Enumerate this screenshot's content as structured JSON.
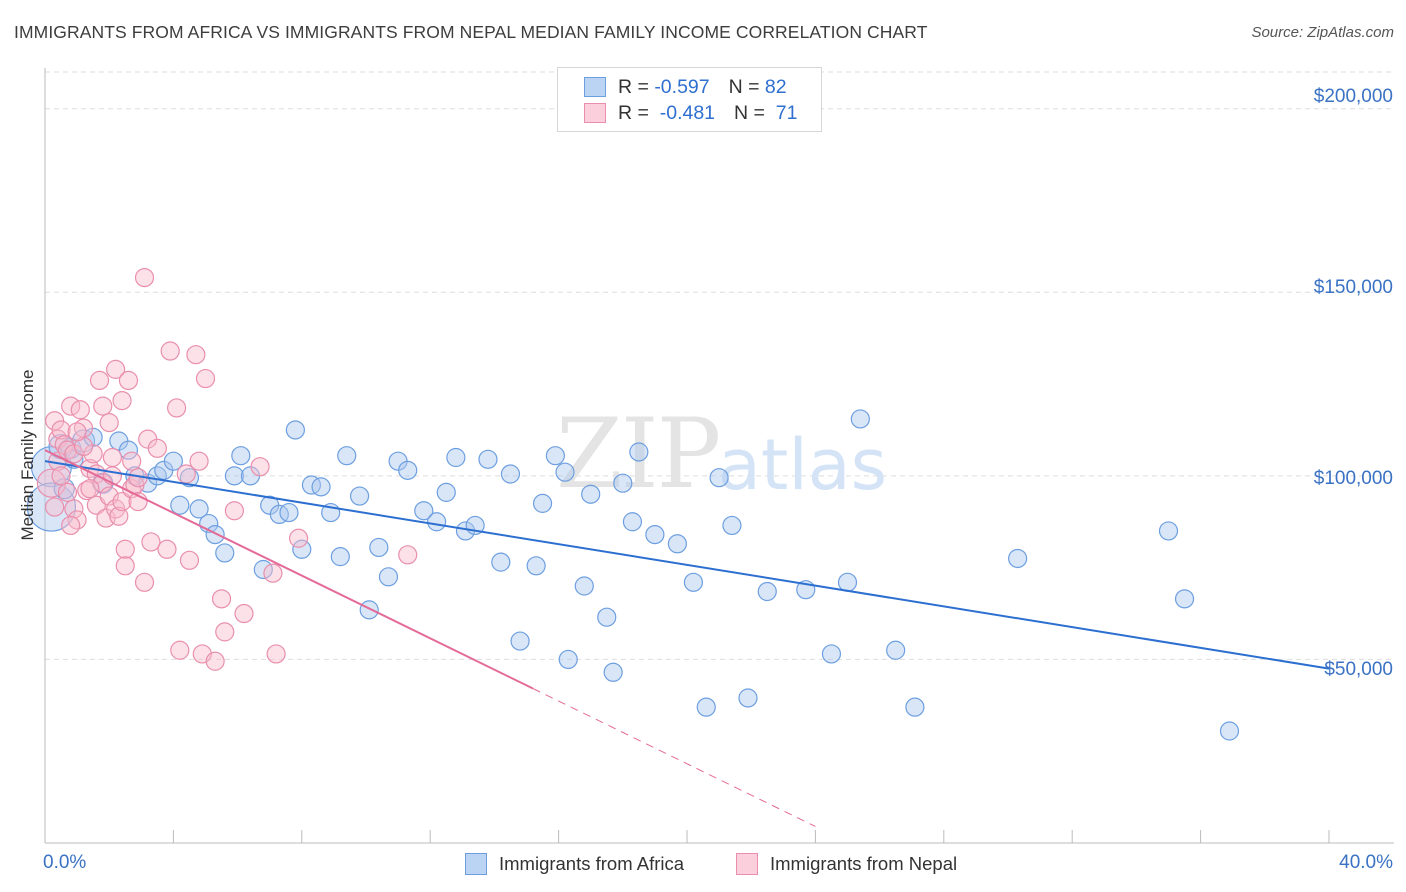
{
  "title": "IMMIGRANTS FROM AFRICA VS IMMIGRANTS FROM NEPAL MEDIAN FAMILY INCOME CORRELATION CHART",
  "source": "Source: ZipAtlas.com",
  "watermark": {
    "zip": "ZIP",
    "atlas": "atlas"
  },
  "legend": {
    "africa": {
      "r_label": "R =",
      "r_value": "-0.597",
      "n_label": "N =",
      "n_value": "82"
    },
    "nepal": {
      "r_label": "R =",
      "r_value": "-0.481",
      "n_label": "N =",
      "n_value": "71"
    }
  },
  "bottom_legend": {
    "africa": "Immigrants from Africa",
    "nepal": "Immigrants from Nepal"
  },
  "colors": {
    "africa_fill": "#aac8f0",
    "africa_stroke": "#6d9fe0",
    "africa_line": "#2c6fd0",
    "nepal_fill": "#f8bccd",
    "nepal_stroke": "#e98fad",
    "nepal_line": "#e46a97",
    "tick_text": "#3a72c4",
    "grid": "#dddddd"
  },
  "chart_data": {
    "type": "scatter",
    "title": "IMMIGRANTS FROM AFRICA VS IMMIGRANTS FROM NEPAL MEDIAN FAMILY INCOME CORRELATION CHART",
    "xlabel": "",
    "ylabel": "Median Family Income",
    "xlim": [
      0,
      40
    ],
    "ylim": [
      0,
      210000
    ],
    "x_tick_labels": [
      "0.0%",
      "40.0%"
    ],
    "y_ticks": [
      50000,
      100000,
      150000,
      200000
    ],
    "y_tick_labels": [
      "$50,000",
      "$100,000",
      "$150,000",
      "$200,000"
    ],
    "series": [
      {
        "name": "Immigrants from Africa",
        "R": -0.597,
        "N": 82,
        "trend": {
          "x0": 0.0,
          "y0": 104000,
          "x1": 40.0,
          "y1": 47500,
          "dashed_from": null
        },
        "points": [
          [
            0.2,
            102500,
            20
          ],
          [
            0.2,
            91500,
            24
          ],
          [
            0.5,
            108000,
            12
          ],
          [
            0.8,
            107500,
            10
          ],
          [
            1.2,
            109500,
            11
          ],
          [
            1.8,
            98000,
            10
          ],
          [
            2.3,
            109500,
            9
          ],
          [
            2.6,
            107000,
            9
          ],
          [
            2.8,
            100000,
            9
          ],
          [
            3.2,
            98000,
            9
          ],
          [
            3.5,
            100000,
            9
          ],
          [
            3.7,
            101500,
            9
          ],
          [
            4.0,
            104000,
            9
          ],
          [
            4.2,
            92000,
            9
          ],
          [
            4.5,
            99500,
            9
          ],
          [
            4.8,
            91000,
            9
          ],
          [
            5.1,
            87000,
            9
          ],
          [
            5.3,
            84000,
            9
          ],
          [
            5.6,
            79000,
            9
          ],
          [
            5.9,
            100000,
            9
          ],
          [
            6.1,
            105500,
            9
          ],
          [
            6.4,
            100000,
            9
          ],
          [
            6.8,
            74500,
            9
          ],
          [
            7.0,
            92000,
            9
          ],
          [
            7.3,
            89500,
            9
          ],
          [
            7.6,
            90000,
            9
          ],
          [
            7.8,
            112500,
            9
          ],
          [
            8.0,
            80000,
            9
          ],
          [
            8.3,
            97500,
            9
          ],
          [
            8.6,
            97000,
            9
          ],
          [
            8.9,
            90000,
            9
          ],
          [
            9.2,
            78000,
            9
          ],
          [
            9.4,
            105500,
            9
          ],
          [
            9.8,
            94500,
            9
          ],
          [
            10.1,
            63500,
            9
          ],
          [
            10.4,
            80500,
            9
          ],
          [
            10.7,
            72500,
            9
          ],
          [
            11.0,
            104000,
            9
          ],
          [
            11.3,
            101500,
            9
          ],
          [
            11.8,
            90500,
            9
          ],
          [
            12.2,
            87500,
            9
          ],
          [
            12.5,
            95500,
            9
          ],
          [
            12.8,
            105000,
            9
          ],
          [
            13.1,
            85000,
            9
          ],
          [
            13.4,
            86500,
            9
          ],
          [
            13.8,
            104500,
            9
          ],
          [
            14.2,
            76500,
            9
          ],
          [
            14.5,
            100500,
            9
          ],
          [
            14.8,
            55000,
            9
          ],
          [
            15.3,
            75500,
            9
          ],
          [
            15.5,
            92500,
            9
          ],
          [
            15.9,
            105500,
            9
          ],
          [
            16.2,
            101000,
            9
          ],
          [
            16.3,
            50000,
            9
          ],
          [
            16.8,
            70000,
            9
          ],
          [
            17.0,
            95000,
            9
          ],
          [
            17.5,
            61500,
            9
          ],
          [
            17.7,
            46500,
            9
          ],
          [
            18.0,
            98000,
            9
          ],
          [
            18.3,
            87500,
            9
          ],
          [
            18.5,
            106500,
            9
          ],
          [
            19.0,
            84000,
            9
          ],
          [
            19.7,
            81500,
            9
          ],
          [
            20.2,
            71000,
            9
          ],
          [
            20.6,
            37000,
            9
          ],
          [
            21.0,
            99500,
            9
          ],
          [
            21.4,
            86500,
            9
          ],
          [
            21.9,
            39500,
            9
          ],
          [
            22.5,
            68500,
            9
          ],
          [
            23.7,
            69000,
            9
          ],
          [
            24.5,
            51500,
            9
          ],
          [
            25.0,
            71000,
            9
          ],
          [
            25.4,
            115500,
            9
          ],
          [
            26.5,
            52500,
            9
          ],
          [
            27.1,
            37000,
            9
          ],
          [
            30.3,
            77500,
            9
          ],
          [
            35.0,
            85000,
            9
          ],
          [
            35.5,
            66500,
            9
          ],
          [
            36.9,
            30500,
            9
          ],
          [
            0.6,
            96500,
            10
          ],
          [
            1.5,
            110500,
            9
          ],
          [
            0.9,
            104500,
            9
          ]
        ]
      },
      {
        "name": "Immigrants from Nepal",
        "R": -0.481,
        "N": 71,
        "trend": {
          "x0": 0.0,
          "y0": 107000,
          "x1": 24.0,
          "y1": 4500,
          "dashed_from": 15.2
        },
        "points": [
          [
            0.2,
            98000,
            14
          ],
          [
            0.3,
            115000,
            9
          ],
          [
            0.4,
            110000,
            9
          ],
          [
            0.4,
            104000,
            9
          ],
          [
            0.5,
            112500,
            9
          ],
          [
            0.6,
            108500,
            9
          ],
          [
            0.7,
            107000,
            9
          ],
          [
            0.8,
            119000,
            9
          ],
          [
            0.9,
            91000,
            9
          ],
          [
            0.9,
            106000,
            9
          ],
          [
            1.0,
            88000,
            9
          ],
          [
            1.1,
            118000,
            9
          ],
          [
            1.2,
            113000,
            9
          ],
          [
            1.3,
            96000,
            9
          ],
          [
            1.4,
            102000,
            9
          ],
          [
            1.5,
            106000,
            9
          ],
          [
            1.6,
            100500,
            9
          ],
          [
            1.6,
            92000,
            9
          ],
          [
            1.7,
            126000,
            9
          ],
          [
            1.8,
            119000,
            9
          ],
          [
            1.8,
            98000,
            9
          ],
          [
            1.9,
            88500,
            9
          ],
          [
            2.0,
            94500,
            9
          ],
          [
            2.1,
            105000,
            9
          ],
          [
            2.1,
            100000,
            9
          ],
          [
            2.2,
            129000,
            9
          ],
          [
            2.2,
            91000,
            9
          ],
          [
            2.3,
            89000,
            9
          ],
          [
            2.4,
            120500,
            9
          ],
          [
            2.4,
            93000,
            9
          ],
          [
            2.5,
            80000,
            9
          ],
          [
            2.5,
            75500,
            9
          ],
          [
            2.6,
            126000,
            9
          ],
          [
            2.7,
            104000,
            9
          ],
          [
            2.7,
            96500,
            9
          ],
          [
            2.8,
            97500,
            9
          ],
          [
            2.9,
            99500,
            9
          ],
          [
            3.1,
            154000,
            9
          ],
          [
            3.1,
            71000,
            9
          ],
          [
            3.2,
            110000,
            9
          ],
          [
            3.3,
            82000,
            9
          ],
          [
            3.8,
            80000,
            9
          ],
          [
            3.9,
            134000,
            9
          ],
          [
            4.1,
            118500,
            9
          ],
          [
            4.2,
            52500,
            9
          ],
          [
            4.5,
            77000,
            9
          ],
          [
            4.7,
            133000,
            9
          ],
          [
            4.8,
            104000,
            9
          ],
          [
            4.9,
            51500,
            9
          ],
          [
            5.0,
            126500,
            9
          ],
          [
            5.3,
            49500,
            9
          ],
          [
            5.5,
            66500,
            9
          ],
          [
            5.6,
            57500,
            9
          ],
          [
            5.9,
            90500,
            9
          ],
          [
            6.2,
            62500,
            9
          ],
          [
            6.7,
            102500,
            9
          ],
          [
            7.1,
            73500,
            9
          ],
          [
            7.2,
            51500,
            9
          ],
          [
            7.9,
            83000,
            9
          ],
          [
            11.3,
            78500,
            9
          ],
          [
            0.3,
            91500,
            9
          ],
          [
            0.5,
            100000,
            9
          ],
          [
            0.7,
            95500,
            9
          ],
          [
            1.2,
            108000,
            9
          ],
          [
            1.4,
            96500,
            9
          ],
          [
            2.9,
            93000,
            9
          ],
          [
            3.5,
            107500,
            9
          ],
          [
            4.4,
            100500,
            9
          ],
          [
            0.8,
            86500,
            9
          ],
          [
            1.0,
            112000,
            9
          ],
          [
            2.0,
            114500,
            9
          ]
        ]
      }
    ]
  }
}
